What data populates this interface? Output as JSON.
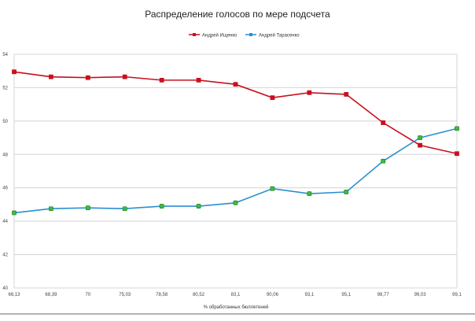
{
  "chart_data": {
    "type": "line",
    "title": "Распределение голосов по мере подсчета",
    "xlabel": "% обработанных бюллетеней",
    "ylabel": "",
    "categories": [
      "66,13",
      "68,39",
      "70",
      "75,03",
      "78,58",
      "80,52",
      "83,1",
      "90,06",
      "93,1",
      "95,1",
      "98,77",
      "99,03",
      "99,1"
    ],
    "ylim": [
      40,
      54
    ],
    "yticks": [
      40,
      42,
      44,
      46,
      48,
      50,
      52,
      54
    ],
    "grid": true,
    "legend_position": "top",
    "series": [
      {
        "name": "Андрей Ищенко",
        "color": "#c8101e",
        "marker": "square",
        "marker_fill": "#c8101e",
        "values": [
          52.95,
          52.65,
          52.6,
          52.65,
          52.45,
          52.45,
          52.2,
          51.4,
          51.7,
          51.6,
          49.9,
          48.55,
          48.05
        ]
      },
      {
        "name": "Андрей Тарасенко",
        "color": "#2a8fd0",
        "marker": "square",
        "marker_fill": "#3dbb3d",
        "values": [
          44.5,
          44.75,
          44.8,
          44.75,
          44.9,
          44.9,
          45.1,
          45.95,
          45.65,
          45.75,
          47.6,
          49.0,
          49.55
        ]
      }
    ]
  }
}
